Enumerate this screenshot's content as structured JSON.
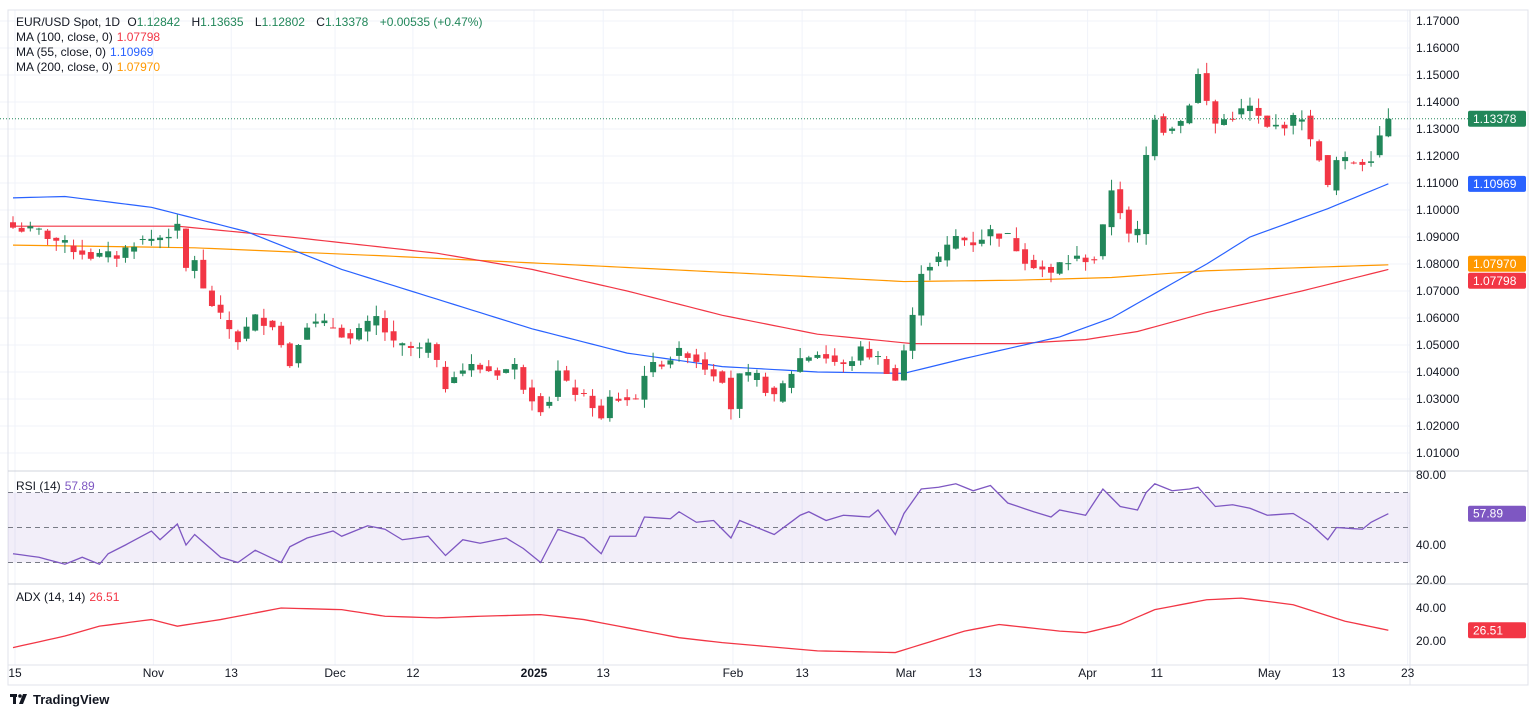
{
  "header": {
    "symbol": "EUR/USD Spot, 1D",
    "o_label": "O",
    "o": "1.12842",
    "h_label": "H",
    "h": "1.13635",
    "l_label": "L",
    "l": "1.12802",
    "c_label": "C",
    "c": "1.13378",
    "change": "+0.00535 (+0.47%)"
  },
  "indicators": [
    {
      "label": "MA (100, close, 0)",
      "value": "1.07798",
      "color": "#f23645"
    },
    {
      "label": "MA (55, close, 0)",
      "value": "1.10969",
      "color": "#2962ff"
    },
    {
      "label": "MA (200, close, 0)",
      "value": "1.07970",
      "color": "#ff9800"
    }
  ],
  "rsi": {
    "label": "RSI (14)",
    "value": "57.89",
    "color": "#7e57c2"
  },
  "adx": {
    "label": "ADX (14, 14)",
    "value": "26.51",
    "color": "#f23645"
  },
  "branding": "TradingView",
  "colors": {
    "up": "#22875a",
    "down": "#f23645",
    "grid": "#f0f3fa"
  },
  "chart_data": {
    "type": "candlestick",
    "title": "EUR/USD Spot, 1D",
    "price_ticks": [
      "1.17000",
      "1.16000",
      "1.15000",
      "1.14000",
      "1.13000",
      "1.12000",
      "1.11000",
      "1.10000",
      "1.09000",
      "1.08000",
      "1.07000",
      "1.06000",
      "1.05000",
      "1.04000",
      "1.03000",
      "1.02000",
      "1.01000"
    ],
    "ylim": [
      1.005,
      1.172
    ],
    "rsi_ticks": [
      "80.00",
      "40.00",
      "20.00"
    ],
    "adx_ticks": [
      "40.00",
      "20.00"
    ],
    "x_ticks": [
      {
        "day": 0,
        "label": "15"
      },
      {
        "day": 16,
        "label": "Nov"
      },
      {
        "day": 25,
        "label": "13"
      },
      {
        "day": 37,
        "label": "Dec"
      },
      {
        "day": 46,
        "label": "12"
      },
      {
        "day": 60,
        "label": "2025",
        "bold": true
      },
      {
        "day": 68,
        "label": "13"
      },
      {
        "day": 83,
        "label": "Feb"
      },
      {
        "day": 91,
        "label": "13"
      },
      {
        "day": 103,
        "label": "Mar"
      },
      {
        "day": 111,
        "label": "13"
      },
      {
        "day": 124,
        "label": "Apr"
      },
      {
        "day": 132,
        "label": "11"
      },
      {
        "day": 145,
        "label": "May"
      },
      {
        "day": 153,
        "label": "13"
      },
      {
        "day": 161,
        "label": "23"
      }
    ],
    "days": 160,
    "close_keypoints": [
      [
        0,
        1.0935
      ],
      [
        3,
        1.092
      ],
      [
        6,
        1.087
      ],
      [
        9,
        1.083
      ],
      [
        12,
        1.083
      ],
      [
        14,
        1.088
      ],
      [
        17,
        1.09
      ],
      [
        19,
        1.093
      ],
      [
        20,
        1.078
      ],
      [
        21,
        1.082
      ],
      [
        22,
        1.07
      ],
      [
        24,
        1.06
      ],
      [
        26,
        1.052
      ],
      [
        28,
        1.06
      ],
      [
        30,
        1.058
      ],
      [
        31,
        1.05
      ],
      [
        32,
        1.043
      ],
      [
        33,
        1.052
      ],
      [
        34,
        1.058
      ],
      [
        37,
        1.057
      ],
      [
        39,
        1.052
      ],
      [
        42,
        1.06
      ],
      [
        44,
        1.05
      ],
      [
        47,
        1.048
      ],
      [
        48,
        1.05
      ],
      [
        50,
        1.035
      ],
      [
        51,
        1.04
      ],
      [
        53,
        1.042
      ],
      [
        56,
        1.04
      ],
      [
        58,
        1.042
      ],
      [
        59,
        1.035
      ],
      [
        61,
        1.027
      ],
      [
        62,
        1.03
      ],
      [
        63,
        1.04
      ],
      [
        64,
        1.035
      ],
      [
        67,
        1.028
      ],
      [
        68,
        1.022
      ],
      [
        69,
        1.03
      ],
      [
        72,
        1.03
      ],
      [
        73,
        1.04
      ],
      [
        74,
        1.042
      ],
      [
        77,
        1.047
      ],
      [
        78,
        1.047
      ],
      [
        80,
        1.042
      ],
      [
        82,
        1.038
      ],
      [
        83,
        1.027
      ],
      [
        84,
        1.038
      ],
      [
        86,
        1.038
      ],
      [
        88,
        1.03
      ],
      [
        90,
        1.04
      ],
      [
        91,
        1.045
      ],
      [
        93,
        1.047
      ],
      [
        96,
        1.042
      ],
      [
        98,
        1.048
      ],
      [
        100,
        1.045
      ],
      [
        102,
        1.037
      ],
      [
        103,
        1.048
      ],
      [
        104,
        1.06
      ],
      [
        105,
        1.078
      ],
      [
        107,
        1.082
      ],
      [
        109,
        1.09
      ],
      [
        111,
        1.088
      ],
      [
        113,
        1.092
      ],
      [
        115,
        1.09
      ],
      [
        117,
        1.082
      ],
      [
        119,
        1.078
      ],
      [
        120,
        1.076
      ],
      [
        121,
        1.08
      ],
      [
        123,
        1.082
      ],
      [
        125,
        1.082
      ],
      [
        126,
        1.093
      ],
      [
        127,
        1.108
      ],
      [
        128,
        1.1
      ],
      [
        129,
        1.09
      ],
      [
        130,
        1.092
      ],
      [
        131,
        1.12
      ],
      [
        132,
        1.135
      ],
      [
        133,
        1.13
      ],
      [
        135,
        1.133
      ],
      [
        136,
        1.14
      ],
      [
        137,
        1.15
      ],
      [
        138,
        1.14
      ],
      [
        139,
        1.132
      ],
      [
        141,
        1.135
      ],
      [
        143,
        1.138
      ],
      [
        145,
        1.13
      ],
      [
        147,
        1.132
      ],
      [
        149,
        1.135
      ],
      [
        150,
        1.125
      ],
      [
        151,
        1.12
      ],
      [
        152,
        1.108
      ],
      [
        153,
        1.118
      ],
      [
        156,
        1.118
      ],
      [
        157,
        1.12
      ],
      [
        158,
        1.128
      ],
      [
        159,
        1.13378
      ]
    ],
    "last_close": 1.13378,
    "ma55": [
      [
        0,
        1.1045
      ],
      [
        6,
        1.105
      ],
      [
        16,
        1.101
      ],
      [
        27,
        1.092
      ],
      [
        38,
        1.078
      ],
      [
        49,
        1.067
      ],
      [
        60,
        1.056
      ],
      [
        71,
        1.047
      ],
      [
        82,
        1.042
      ],
      [
        93,
        1.04
      ],
      [
        103,
        1.0395
      ],
      [
        110,
        1.045
      ],
      [
        121,
        1.053
      ],
      [
        127,
        1.06
      ],
      [
        138,
        1.08
      ],
      [
        143,
        1.09
      ],
      [
        152,
        1.1005
      ],
      [
        159,
        1.10969
      ]
    ],
    "ma100": [
      [
        0,
        1.094
      ],
      [
        19,
        1.094
      ],
      [
        32,
        1.09
      ],
      [
        49,
        1.084
      ],
      [
        60,
        1.078
      ],
      [
        71,
        1.07
      ],
      [
        82,
        1.061
      ],
      [
        93,
        1.054
      ],
      [
        104,
        1.0505
      ],
      [
        116,
        1.0505
      ],
      [
        124,
        1.052
      ],
      [
        130,
        1.055
      ],
      [
        138,
        1.062
      ],
      [
        149,
        1.07
      ],
      [
        159,
        1.07798
      ]
    ],
    "ma200": [
      [
        0,
        1.087
      ],
      [
        21,
        1.086
      ],
      [
        43,
        1.083
      ],
      [
        66,
        1.0795
      ],
      [
        88,
        1.076
      ],
      [
        103,
        1.0735
      ],
      [
        116,
        1.074
      ],
      [
        127,
        1.075
      ],
      [
        138,
        1.0775
      ],
      [
        159,
        1.0797
      ]
    ],
    "rsi_series": [
      [
        0,
        35
      ],
      [
        3,
        33
      ],
      [
        6,
        29
      ],
      [
        8,
        33
      ],
      [
        10,
        29
      ],
      [
        11,
        35
      ],
      [
        13,
        40
      ],
      [
        16,
        48
      ],
      [
        17,
        43
      ],
      [
        19,
        52
      ],
      [
        20,
        40
      ],
      [
        21,
        46
      ],
      [
        24,
        33
      ],
      [
        26,
        30
      ],
      [
        28,
        37
      ],
      [
        31,
        30
      ],
      [
        32,
        39
      ],
      [
        34,
        44
      ],
      [
        37,
        48
      ],
      [
        38,
        45
      ],
      [
        41,
        51
      ],
      [
        43,
        49
      ],
      [
        45,
        43
      ],
      [
        48,
        45
      ],
      [
        50,
        34
      ],
      [
        52,
        43
      ],
      [
        54,
        41
      ],
      [
        57,
        44
      ],
      [
        59,
        38
      ],
      [
        61,
        30
      ],
      [
        63,
        49
      ],
      [
        66,
        44
      ],
      [
        68,
        35
      ],
      [
        69,
        45
      ],
      [
        72,
        45
      ],
      [
        73,
        56
      ],
      [
        76,
        55
      ],
      [
        77,
        59
      ],
      [
        79,
        53
      ],
      [
        81,
        54
      ],
      [
        83,
        44
      ],
      [
        84,
        54
      ],
      [
        87,
        48
      ],
      [
        88,
        46
      ],
      [
        91,
        57
      ],
      [
        92,
        59
      ],
      [
        94,
        54
      ],
      [
        96,
        57
      ],
      [
        99,
        56
      ],
      [
        100,
        60
      ],
      [
        102,
        46
      ],
      [
        103,
        58
      ],
      [
        105,
        72
      ],
      [
        107,
        73
      ],
      [
        109,
        75
      ],
      [
        111,
        71
      ],
      [
        113,
        74
      ],
      [
        115,
        64
      ],
      [
        118,
        59
      ],
      [
        120,
        56
      ],
      [
        121,
        60
      ],
      [
        124,
        57
      ],
      [
        126,
        72
      ],
      [
        128,
        62
      ],
      [
        130,
        60
      ],
      [
        131,
        70
      ],
      [
        132,
        75
      ],
      [
        134,
        71
      ],
      [
        136,
        72
      ],
      [
        137,
        73
      ],
      [
        139,
        62
      ],
      [
        141,
        63
      ],
      [
        143,
        61
      ],
      [
        145,
        57
      ],
      [
        148,
        58
      ],
      [
        150,
        52
      ],
      [
        152,
        43
      ],
      [
        153,
        50
      ],
      [
        156,
        49
      ],
      [
        157,
        53
      ],
      [
        159,
        57.89
      ]
    ],
    "rsi_bands": [
      30,
      70
    ],
    "adx_series": [
      [
        0,
        16
      ],
      [
        6,
        23
      ],
      [
        10,
        29
      ],
      [
        16,
        33
      ],
      [
        19,
        29
      ],
      [
        24,
        33
      ],
      [
        31,
        40
      ],
      [
        38,
        39
      ],
      [
        43,
        35
      ],
      [
        49,
        34
      ],
      [
        54,
        35
      ],
      [
        61,
        36
      ],
      [
        66,
        33
      ],
      [
        77,
        22
      ],
      [
        82,
        19
      ],
      [
        93,
        14
      ],
      [
        102,
        13
      ],
      [
        110,
        26
      ],
      [
        114,
        30
      ],
      [
        121,
        26
      ],
      [
        124,
        25
      ],
      [
        128,
        30
      ],
      [
        132,
        39
      ],
      [
        138,
        45
      ],
      [
        142,
        46
      ],
      [
        148,
        42
      ],
      [
        154,
        32
      ],
      [
        159,
        26.51
      ]
    ]
  }
}
